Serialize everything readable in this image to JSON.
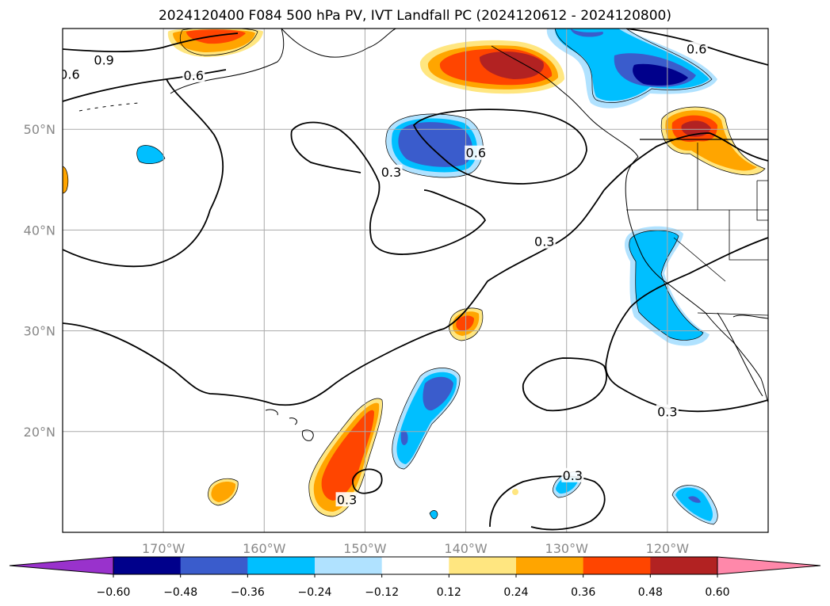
{
  "chart_data": {
    "type": "heatmap",
    "title": "2024120400 F084 500 hPa PV, IVT Landfall PC (2024120612 - 2024120800)",
    "projection": "plate-carree",
    "lon_range": [
      -180,
      -110
    ],
    "lat_range": [
      10,
      60
    ],
    "grid": true,
    "lon_ticks": [
      {
        "value": -170,
        "label": "170°W"
      },
      {
        "value": -160,
        "label": "160°W"
      },
      {
        "value": -150,
        "label": "150°W"
      },
      {
        "value": -140,
        "label": "140°W"
      },
      {
        "value": -130,
        "label": "130°W"
      },
      {
        "value": -120,
        "label": "120°W"
      }
    ],
    "lat_ticks": [
      {
        "value": 20,
        "label": "20°N"
      },
      {
        "value": 30,
        "label": "30°N"
      },
      {
        "value": 40,
        "label": "40°N"
      },
      {
        "value": 50,
        "label": "50°N"
      }
    ],
    "colorbar": {
      "extend": "both",
      "levels": [
        -0.6,
        -0.48,
        -0.36,
        -0.24,
        -0.12,
        0.12,
        0.24,
        0.36,
        0.48,
        0.6
      ],
      "tick_labels": [
        "−0.60",
        "−0.48",
        "−0.36",
        "−0.24",
        "−0.12",
        "0.12",
        "0.24",
        "0.36",
        "0.48",
        "0.60"
      ],
      "colors": [
        "#9932cc",
        "#00008b",
        "#3a5ccc",
        "#00bfff",
        "#b0e2ff",
        "#ffffff",
        "#ffe680",
        "#ffa500",
        "#ff4500",
        "#b22222",
        "#ff88aa"
      ]
    },
    "contour_labels": [
      {
        "text": "0.9",
        "lon": -175.9,
        "lat": 56.8
      },
      {
        "text": "0.6",
        "lon": -167.0,
        "lat": 55.3
      },
      {
        "text": "0.6",
        "lon": -179.3,
        "lat": 55.4
      },
      {
        "text": "0.6",
        "lon": -117.1,
        "lat": 57.9
      },
      {
        "text": "0.6",
        "lon": -139.0,
        "lat": 47.6
      },
      {
        "text": "0.3",
        "lon": -147.4,
        "lat": 45.7
      },
      {
        "text": "0.3",
        "lon": -132.2,
        "lat": 38.8
      },
      {
        "text": "0.3",
        "lon": -120.0,
        "lat": 21.9
      },
      {
        "text": "0.3",
        "lon": -129.4,
        "lat": 15.6
      },
      {
        "text": "0.3",
        "lon": -151.8,
        "lat": 13.2
      }
    ],
    "anomalies": [
      {
        "sign": "positive",
        "peak": 0.4,
        "lon": -166.8,
        "lat": 59.5
      },
      {
        "sign": "positive",
        "peak": 0.5,
        "lon": -135.5,
        "lat": 56.8
      },
      {
        "sign": "negative",
        "peak": -0.5,
        "lon": -121.0,
        "lat": 55.5
      },
      {
        "sign": "negative",
        "peak": -0.4,
        "lon": -126.0,
        "lat": 58.5
      },
      {
        "sign": "negative",
        "peak": -0.4,
        "lon": -142.3,
        "lat": 48.8
      },
      {
        "sign": "positive",
        "peak": 0.5,
        "lon": -117.8,
        "lat": 49.0
      },
      {
        "sign": "positive",
        "peak": 0.3,
        "lon": -114.5,
        "lat": 45.5
      },
      {
        "sign": "negative",
        "peak": -0.3,
        "lon": -121.0,
        "lat": 33.0
      },
      {
        "sign": "negative",
        "peak": -0.3,
        "lon": -118.0,
        "lat": 28.3
      },
      {
        "sign": "positive",
        "peak": 0.4,
        "lon": -140.5,
        "lat": 30.8
      },
      {
        "sign": "negative",
        "peak": -0.4,
        "lon": -142.6,
        "lat": 23.9
      },
      {
        "sign": "negative",
        "peak": -0.3,
        "lon": -145.5,
        "lat": 19.0
      },
      {
        "sign": "positive",
        "peak": 0.4,
        "lon": -151.6,
        "lat": 17.5
      },
      {
        "sign": "positive",
        "peak": 0.3,
        "lon": -163.8,
        "lat": 14.0
      },
      {
        "sign": "negative",
        "peak": -0.3,
        "lon": -130.5,
        "lat": 14.8
      },
      {
        "sign": "negative",
        "peak": -0.4,
        "lon": -117.3,
        "lat": 12.8
      },
      {
        "sign": "negative",
        "peak": -0.3,
        "lon": -171.0,
        "lat": 47.6
      },
      {
        "sign": "positive",
        "peak": 0.3,
        "lon": -180.0,
        "lat": 45.5
      }
    ]
  }
}
